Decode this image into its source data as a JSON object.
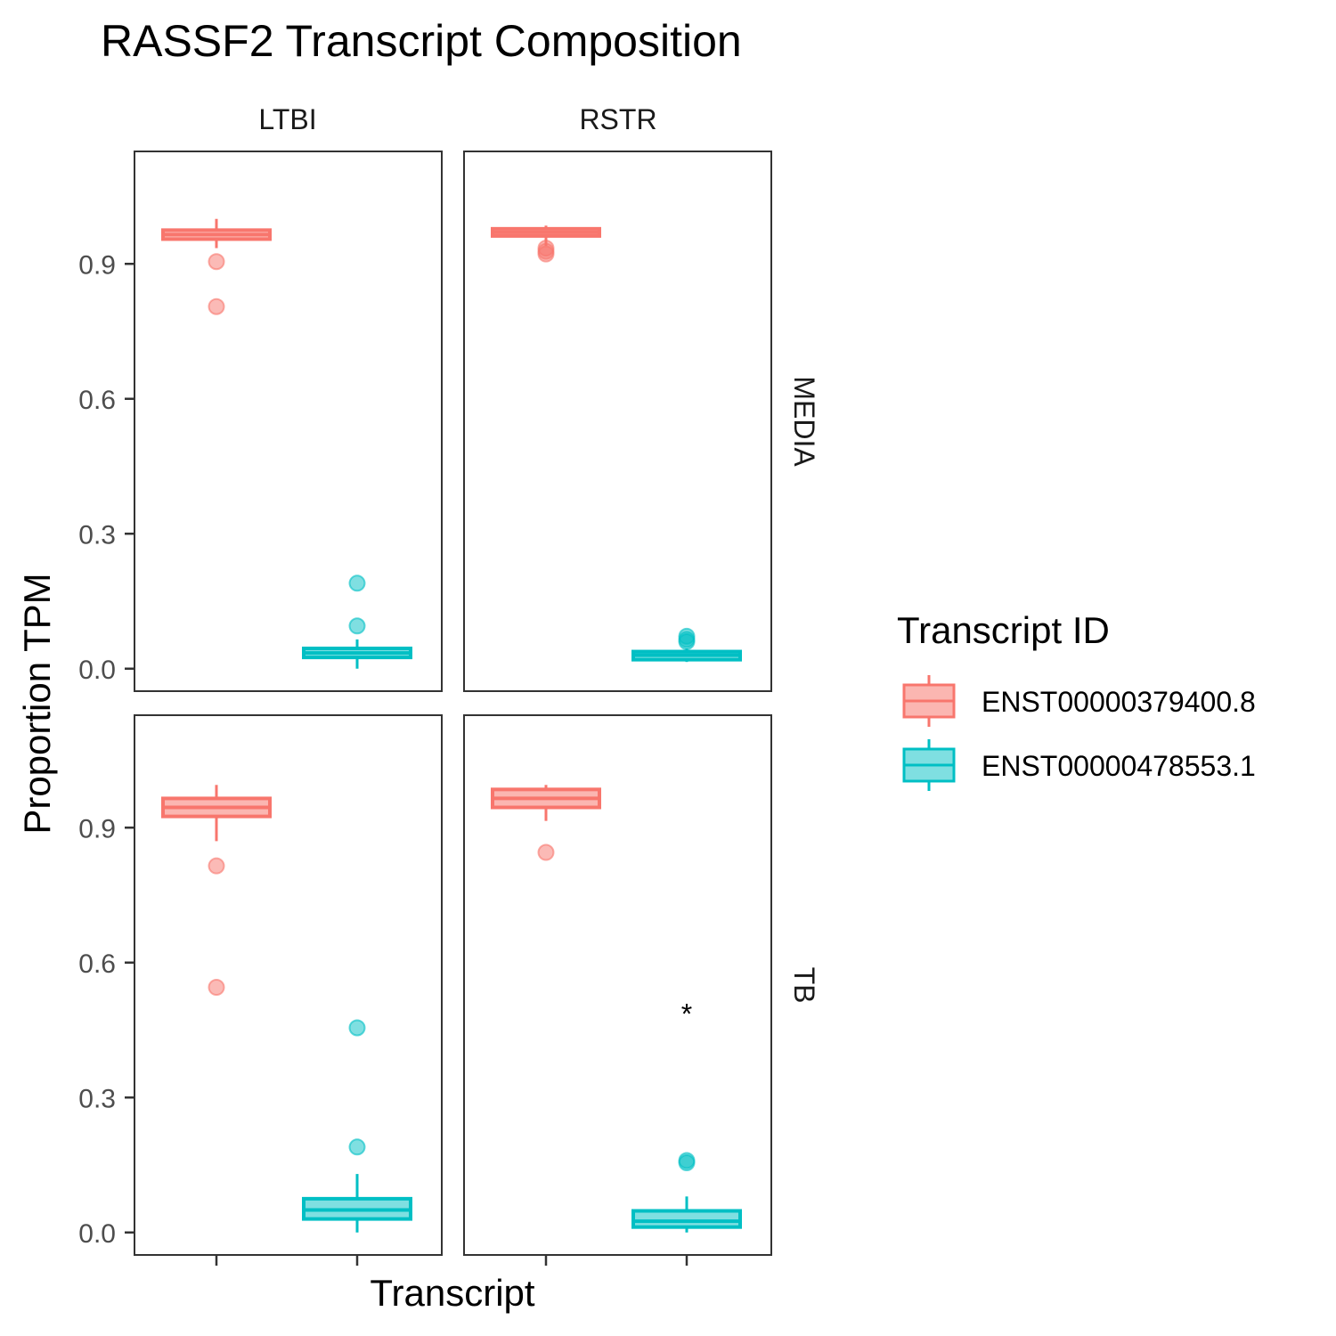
{
  "chart_data": {
    "type": "boxplot",
    "title": "RASSF2 Transcript Composition",
    "xlabel": "Transcript",
    "ylabel": "Proportion TPM",
    "ylim": [
      -0.05,
      1.15
    ],
    "yticks": [
      "0.0",
      "0.3",
      "0.6",
      "0.9"
    ],
    "ytick_values": [
      0.0,
      0.3,
      0.6,
      0.9
    ],
    "facet_cols": [
      "LTBI",
      "RSTR"
    ],
    "facet_rows": [
      "MEDIA",
      "TB"
    ],
    "legend": {
      "title": "Transcript ID",
      "position": "right",
      "items": [
        {
          "label": "ENST00000379400.8",
          "color": "#F8766D",
          "fill": "#FBB6B1"
        },
        {
          "label": "ENST00000478553.1",
          "color": "#00BFC4",
          "fill": "#7FDFE1"
        }
      ]
    },
    "panels": [
      {
        "col": "LTBI",
        "row": "MEDIA",
        "annotation": "",
        "boxes": [
          {
            "series": "ENST00000379400.8",
            "whisker_low": 0.935,
            "q1": 0.955,
            "median": 0.965,
            "q3": 0.975,
            "whisker_high": 1.0,
            "outliers": [
              0.905,
              0.805
            ]
          },
          {
            "series": "ENST00000478553.1",
            "whisker_low": 0.0,
            "q1": 0.025,
            "median": 0.035,
            "q3": 0.045,
            "whisker_high": 0.065,
            "outliers": [
              0.19,
              0.095
            ]
          }
        ]
      },
      {
        "col": "RSTR",
        "row": "MEDIA",
        "annotation": "",
        "boxes": [
          {
            "series": "ENST00000379400.8",
            "whisker_low": 0.94,
            "q1": 0.962,
            "median": 0.97,
            "q3": 0.978,
            "whisker_high": 0.985,
            "outliers": [
              0.935,
              0.928,
              0.922
            ]
          },
          {
            "series": "ENST00000478553.1",
            "whisker_low": 0.015,
            "q1": 0.02,
            "median": 0.03,
            "q3": 0.038,
            "whisker_high": 0.045,
            "outliers": [
              0.072,
              0.065,
              0.06
            ]
          }
        ]
      },
      {
        "col": "LTBI",
        "row": "TB",
        "annotation": "",
        "boxes": [
          {
            "series": "ENST00000379400.8",
            "whisker_low": 0.87,
            "q1": 0.925,
            "median": 0.945,
            "q3": 0.965,
            "whisker_high": 0.995,
            "outliers": [
              0.815,
              0.545
            ]
          },
          {
            "series": "ENST00000478553.1",
            "whisker_low": 0.0,
            "q1": 0.03,
            "median": 0.05,
            "q3": 0.075,
            "whisker_high": 0.13,
            "outliers": [
              0.455,
              0.19
            ]
          }
        ]
      },
      {
        "col": "RSTR",
        "row": "TB",
        "annotation": "*",
        "annotation_y": 0.5,
        "boxes": [
          {
            "series": "ENST00000379400.8",
            "whisker_low": 0.915,
            "q1": 0.945,
            "median": 0.965,
            "q3": 0.985,
            "whisker_high": 0.995,
            "outliers": [
              0.845
            ]
          },
          {
            "series": "ENST00000478553.1",
            "whisker_low": 0.0,
            "q1": 0.012,
            "median": 0.025,
            "q3": 0.048,
            "whisker_high": 0.08,
            "outliers": [
              0.16,
              0.155
            ]
          }
        ]
      }
    ]
  }
}
